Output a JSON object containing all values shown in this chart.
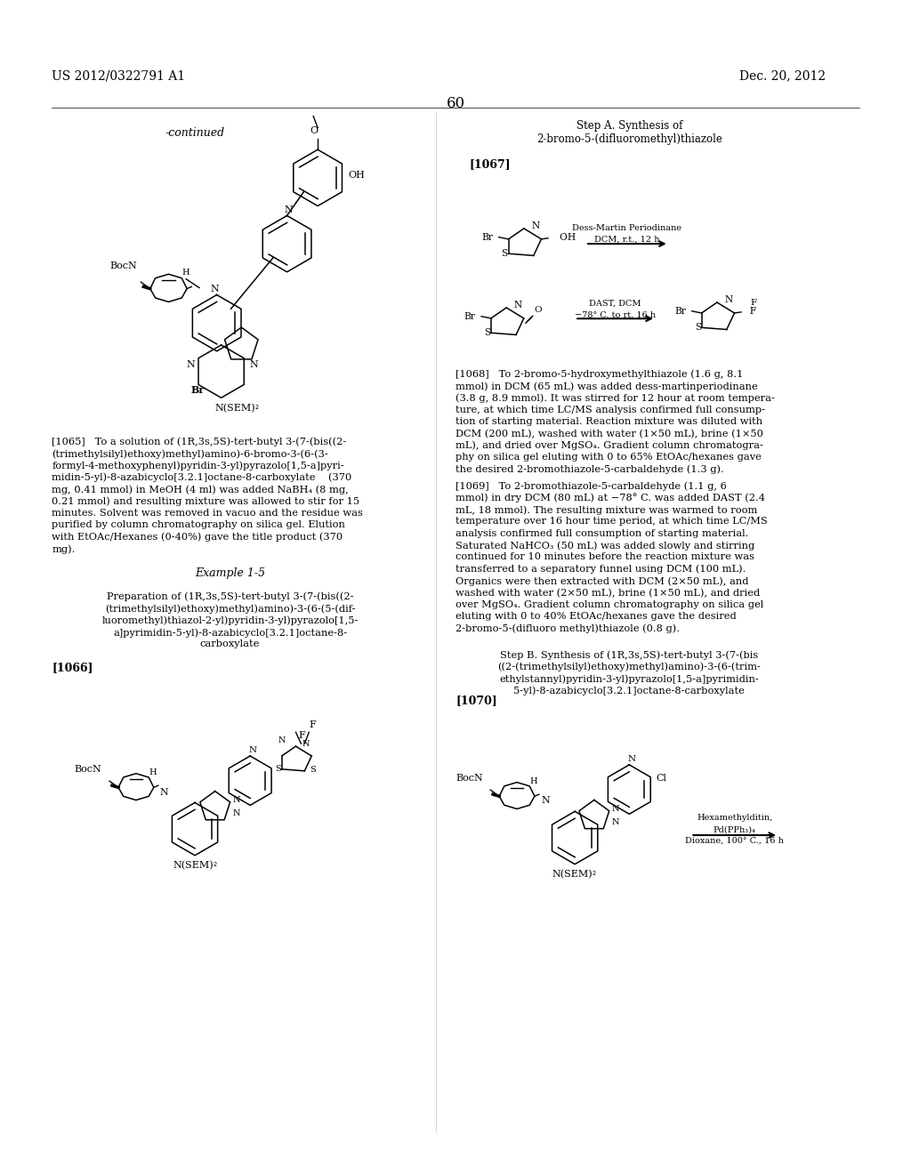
{
  "page_number": "60",
  "patent_number": "US 2012/0322791 A1",
  "date": "Dec. 20, 2012",
  "background_color": "#ffffff",
  "text_color": "#000000",
  "continued_label": "-continued",
  "step_a_title_line1": "Step A. Synthesis of",
  "step_a_title_line2": "2-bromo-5-(difluoromethyl)thiazole",
  "ref_1067": "[1067]",
  "ref_1066": "[1066]",
  "ref_1070": "[1070]",
  "example_title": "Example 1-5",
  "arrow_label_1_line1": "Dess-Martin Periodinane",
  "arrow_label_1_line2": "DCM, r.t., 12 h",
  "arrow_label_2_line1": "DAST, DCM",
  "arrow_label_2_line2": "−78° C. to rt, 16 h",
  "arrow_label_3_line1": "Hexamethylditin,",
  "arrow_label_3_line2": "Pd(PPh₃)₄",
  "arrow_label_3_line3": "Dioxane, 100° C., 16 h",
  "para_1065_lines": [
    "[1065]   To a solution of (1R,3s,5S)-tert-butyl 3-(7-(bis((2-",
    "(trimethylsilyl)ethoxy)methyl)amino)-6-bromo-3-(6-(3-",
    "formyl-4-methoxyphenyl)pyridin-3-yl)pyrazolo[1,5-a]pyri-",
    "midin-5-yl)-8-azabicyclo[3.2.1]octane-8-carboxylate    (370",
    "mg, 0.41 mmol) in MeOH (4 ml) was added NaBH₄ (8 mg,",
    "0.21 mmol) and resulting mixture was allowed to stir for 15",
    "minutes. Solvent was removed in vacuo and the residue was",
    "purified by column chromatography on silica gel. Elution",
    "with EtOAc/Hexanes (0-40%) gave the title product (370",
    "mg)."
  ],
  "prep_lines": [
    "Preparation of (1R,3s,5S)-tert-butyl 3-(7-(bis((2-",
    "(trimethylsilyl)ethoxy)methyl)amino)-3-(6-(5-(dif-",
    "luoromethyl)thiazol-2-yl)pyridin-3-yl)pyrazolo[1,5-",
    "a]pyrimidin-5-yl)-8-azabicyclo[3.2.1]octane-8-",
    "carboxylate"
  ],
  "para_1068_lines": [
    "[1068]   To 2-bromo-5-hydroxymethylthiazole (1.6 g, 8.1",
    "mmol) in DCM (65 mL) was added dess-martinperiodinane",
    "(3.8 g, 8.9 mmol). It was stirred for 12 hour at room tempera-",
    "ture, at which time LC/MS analysis confirmed full consump-",
    "tion of starting material. Reaction mixture was diluted with",
    "DCM (200 mL), washed with water (1×50 mL), brine (1×50",
    "mL), and dried over MgSO₄. Gradient column chromatogra-",
    "phy on silica gel eluting with 0 to 65% EtOAc/hexanes gave",
    "the desired 2-bromothiazole-5-carbaldehyde (1.3 g)."
  ],
  "para_1069_lines": [
    "[1069]   To 2-bromothiazole-5-carbaldehyde (1.1 g, 6",
    "mmol) in dry DCM (80 mL) at −78° C. was added DAST (2.4",
    "mL, 18 mmol). The resulting mixture was warmed to room",
    "temperature over 16 hour time period, at which time LC/MS",
    "analysis confirmed full consumption of starting material.",
    "Saturated NaHCO₃ (50 mL) was added slowly and stirring",
    "continued for 10 minutes before the reaction mixture was",
    "transferred to a separatory funnel using DCM (100 mL).",
    "Organics were then extracted with DCM (2×50 mL), and",
    "washed with water (2×50 mL), brine (1×50 mL), and dried",
    "over MgSO₄. Gradient column chromatography on silica gel",
    "eluting with 0 to 40% EtOAc/hexanes gave the desired",
    "2-bromo-5-(difluoro methyl)thiazole (0.8 g)."
  ],
  "step_b_lines": [
    "Step B. Synthesis of (1R,3s,5S)-tert-butyl 3-(7-(bis",
    "((2-(trimethylsilyl)ethoxy)methyl)amino)-3-(6-(trim-",
    "ethylstannyl)pyridin-3-yl)pyrazolo[1,5-a]pyrimidin-",
    "5-yl)-8-azabicyclo[3.2.1]octane-8-carboxylate"
  ]
}
